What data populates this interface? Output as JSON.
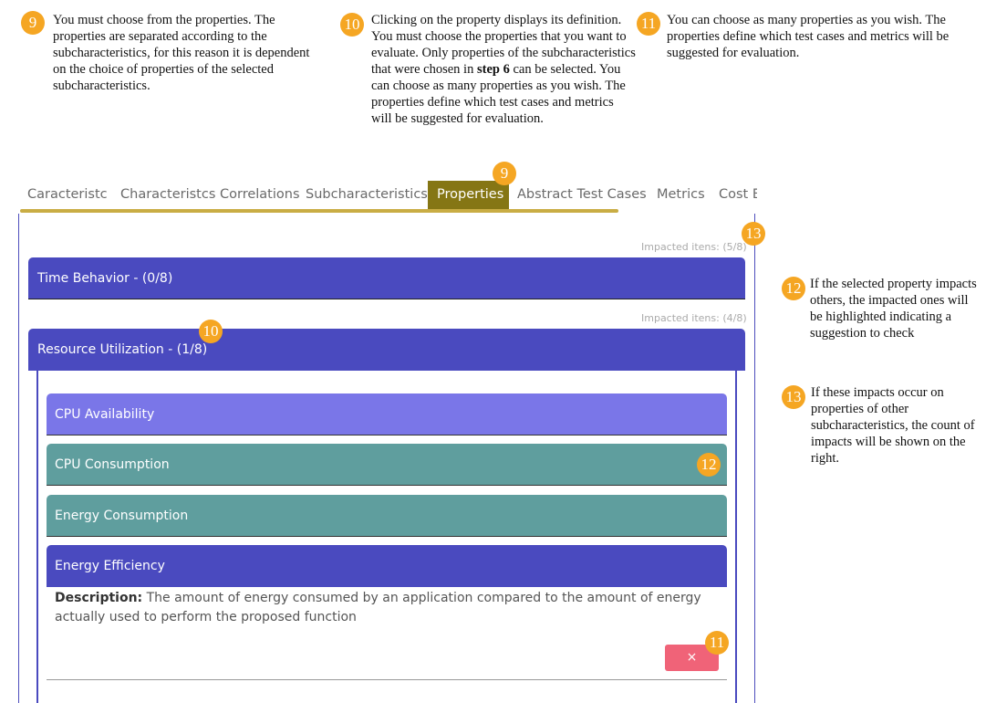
{
  "annotations": {
    "badges": [
      "9",
      "10",
      "11",
      "12",
      "13"
    ],
    "note_9": "You must choose from the properties. The properties are separated according to the subcharacteristics, for this reason it is dependent on the choice of properties of the selected subcharacteristics.",
    "note_10_a": "Clicking on the property displays its definition. You must choose the properties that you want to evaluate. Only properties of the subcharacteristics that were chosen in ",
    "note_10_bold": "step 6",
    "note_10_b": " can be selected. You can choose as many properties as you wish. The properties define which test cases and metrics will be suggested for evaluation.",
    "note_11": "You can choose as many properties as you wish. The properties define which test cases and metrics will be suggested for evaluation.",
    "note_12": "If the selected property impacts others, the impacted ones will be highlighted indicating a suggestion to check",
    "note_13": "If these impacts occur on properties of other subcharacteristics, the count of impacts will be shown on the right."
  },
  "tabs": [
    {
      "label": "Caracteristc"
    },
    {
      "label": "Characteristcs Correlations"
    },
    {
      "label": "Subcharacteristics"
    },
    {
      "label": "Properties"
    },
    {
      "label": "Abstract Test Cases"
    },
    {
      "label": "Metrics"
    },
    {
      "label": "Cost E"
    }
  ],
  "groups": [
    {
      "impacted": "Impacted itens: (5/8)",
      "title": "Time Behavior - (0/8)"
    },
    {
      "impacted": "Impacted itens: (4/8)",
      "title": "Resource Utilization - (1/8)"
    }
  ],
  "properties": [
    {
      "label": "CPU Availability"
    },
    {
      "label": "CPU Consumption"
    },
    {
      "label": "Energy Consumption"
    },
    {
      "label": "Energy Efficiency"
    }
  ],
  "description": {
    "label": "Description:",
    "text": " The amount of energy consumed by an application compared to the amount of energy actually used to perform the proposed function"
  },
  "remove_button": {
    "label": "×"
  },
  "colors": {
    "badge": "#f5a623",
    "active_tab": "#857614",
    "group_header": "#4a4abf",
    "prop_available": "#7a76e8",
    "prop_impacted": "#5f9e9e",
    "prop_selected": "#4a4abf",
    "remove": "#f06378"
  }
}
